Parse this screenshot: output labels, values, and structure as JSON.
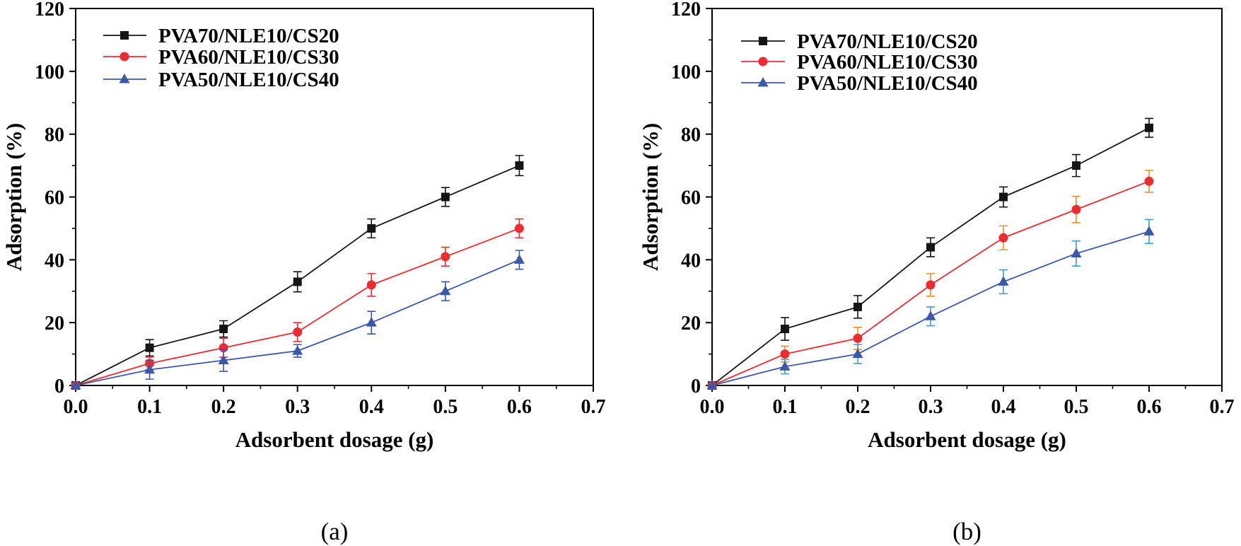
{
  "chart_data": [
    {
      "type": "line",
      "panel_label": "(a)",
      "xlabel": "Adsorbent dosage (g)",
      "ylabel": "Adsorption (%)",
      "xlim": [
        0,
        0.7
      ],
      "ylim": [
        0,
        120
      ],
      "xticks": [
        0,
        0.1,
        0.2,
        0.3,
        0.4,
        0.5,
        0.6,
        0.7
      ],
      "xtick_labels": [
        "0.0",
        "0.1",
        "0.2",
        "0.3",
        "0.4",
        "0.5",
        "0.6",
        "0.7"
      ],
      "yticks": [
        0,
        20,
        40,
        60,
        80,
        100,
        120
      ],
      "ytick_labels": [
        "0",
        "20",
        "40",
        "60",
        "80",
        "100",
        "120"
      ],
      "grid": false,
      "legend_position": "top-left",
      "x": [
        0,
        0.1,
        0.2,
        0.3,
        0.4,
        0.5,
        0.6
      ],
      "series": [
        {
          "name": "PVA70/NLE10/CS20",
          "marker": "square",
          "color": "#151515",
          "error_color": "#151515",
          "values": [
            0,
            12,
            18,
            33,
            50,
            60,
            70
          ],
          "errors": [
            0,
            2.6,
            2.6,
            3.2,
            3.0,
            3.0,
            3.2
          ]
        },
        {
          "name": "PVA60/NLE10/CS30",
          "marker": "circle",
          "color": "#ee2b30",
          "error_color": "#ee2b30",
          "values": [
            0,
            7,
            12,
            17,
            32,
            41,
            50
          ],
          "errors": [
            0,
            2.0,
            3.0,
            3.0,
            3.6,
            3.0,
            3.0
          ]
        },
        {
          "name": "PVA50/NLE10/CS40",
          "marker": "triangle",
          "color": "#3b58aa",
          "error_color": "#3b58aa",
          "values": [
            0,
            5,
            8,
            11,
            20,
            30,
            40
          ],
          "errors": [
            0,
            3.0,
            3.5,
            2.0,
            3.6,
            3.0,
            3.0
          ]
        }
      ]
    },
    {
      "type": "line",
      "panel_label": "(b)",
      "xlabel": "Adsorbent dosage (g)",
      "ylabel": "Adsorption (%)",
      "xlim": [
        0,
        0.7
      ],
      "ylim": [
        0,
        120
      ],
      "xticks": [
        0,
        0.1,
        0.2,
        0.3,
        0.4,
        0.5,
        0.6,
        0.7
      ],
      "xtick_labels": [
        "0.0",
        "0.1",
        "0.2",
        "0.3",
        "0.4",
        "0.5",
        "0.6",
        "0.7"
      ],
      "yticks": [
        0,
        20,
        40,
        60,
        80,
        100,
        120
      ],
      "ytick_labels": [
        "0",
        "20",
        "40",
        "60",
        "80",
        "100",
        "120"
      ],
      "grid": false,
      "legend_position": "top-left",
      "x": [
        0,
        0.1,
        0.2,
        0.3,
        0.4,
        0.5,
        0.6
      ],
      "series": [
        {
          "name": "PVA70/NLE10/CS20",
          "marker": "square",
          "color": "#151515",
          "error_color": "#151515",
          "values": [
            0,
            18,
            25,
            44,
            60,
            70,
            82
          ],
          "errors": [
            0,
            3.6,
            3.6,
            3.0,
            3.2,
            3.5,
            3.0
          ]
        },
        {
          "name": "PVA60/NLE10/CS30",
          "marker": "circle",
          "color": "#ee2b30",
          "error_color": "#f28c28",
          "values": [
            0,
            10,
            15,
            32,
            47,
            56,
            65
          ],
          "errors": [
            0,
            2.5,
            3.5,
            3.6,
            3.8,
            4.2,
            3.5
          ]
        },
        {
          "name": "PVA50/NLE10/CS40",
          "marker": "triangle",
          "color": "#3b58aa",
          "error_color": "#3a9fd8",
          "values": [
            0,
            6,
            10,
            22,
            33,
            42,
            49
          ],
          "errors": [
            0,
            2.3,
            3.0,
            3.0,
            3.8,
            4.0,
            3.8
          ]
        }
      ]
    }
  ]
}
